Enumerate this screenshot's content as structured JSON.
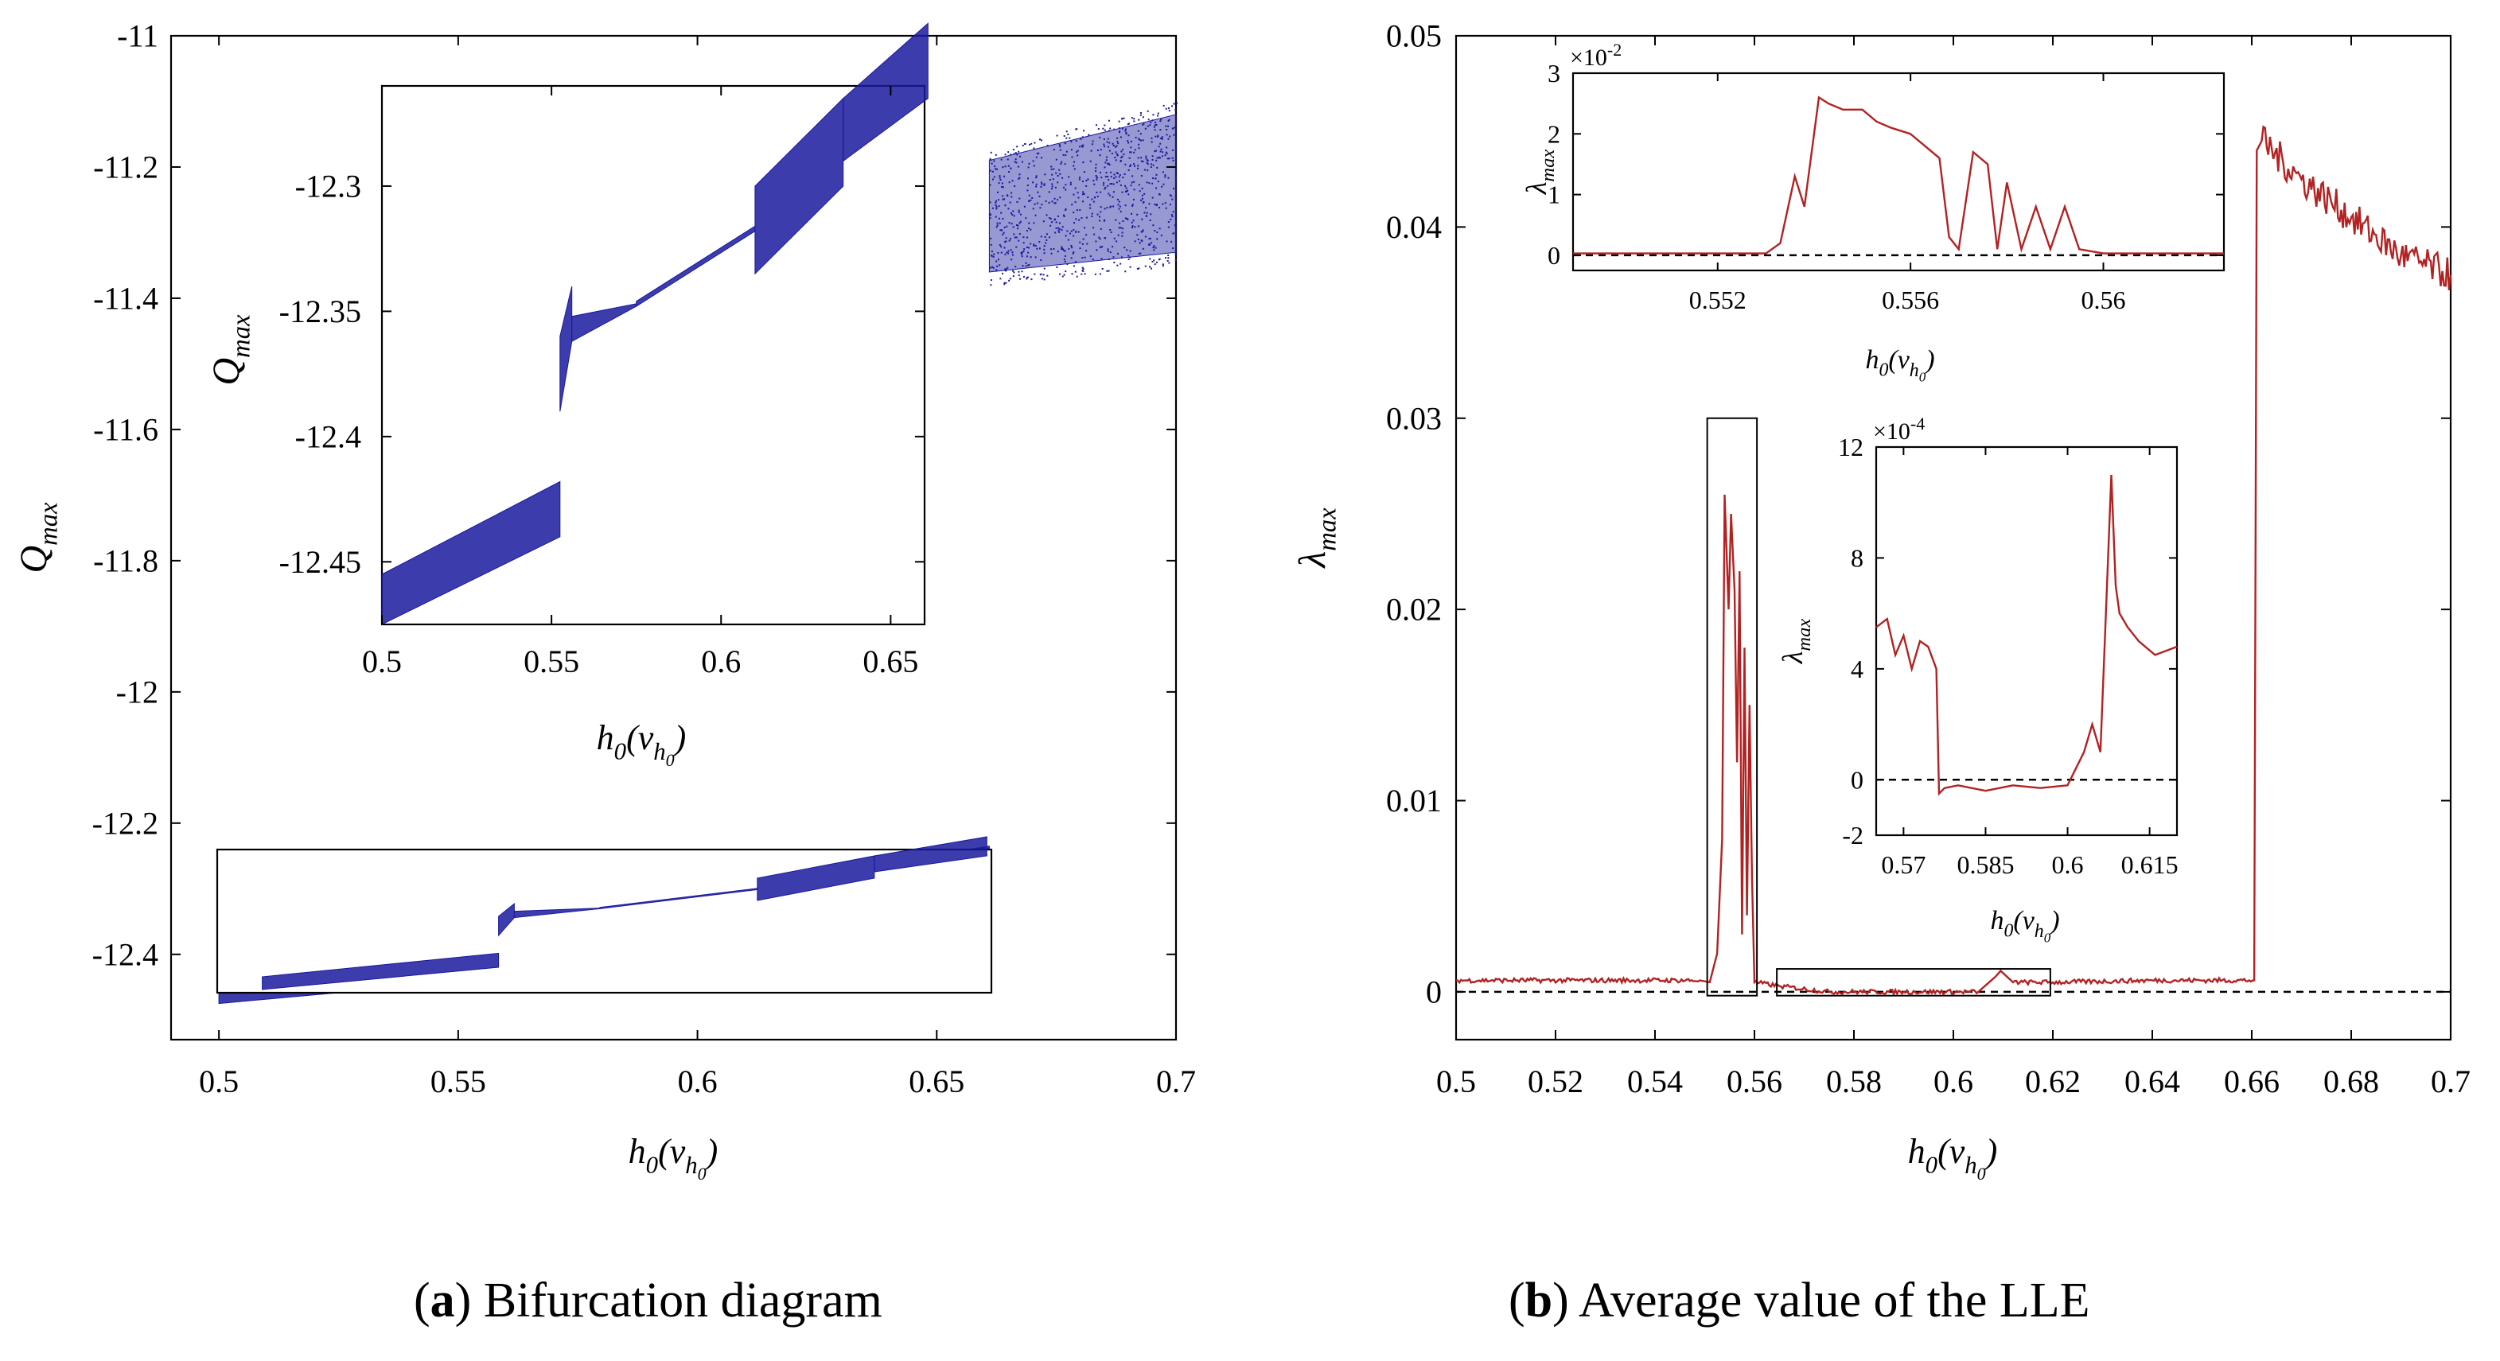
{
  "chart_data": [
    {
      "id": "a",
      "type": "scatter",
      "title": "Bifurcation diagram",
      "xlabel_base": "h",
      "xlabel_sub": "0",
      "xlabel_arg": "v",
      "xlabel_argsub": "h",
      "xlabel_argsub2": "0",
      "ylabel_base": "Q",
      "ylabel_sub": "max",
      "xlim": [
        0.49,
        0.7
      ],
      "ylim": [
        -12.53,
        -11.0
      ],
      "xticks": [
        0.5,
        0.55,
        0.6,
        0.65,
        0.7
      ],
      "xtick_labels": [
        "0.5",
        "0.55",
        "0.6",
        "0.65",
        "0.7"
      ],
      "yticks": [
        -11,
        -11.2,
        -11.4,
        -11.6,
        -11.8,
        -12,
        -12.2,
        -12.4
      ],
      "ytick_labels": [
        "-11",
        "-11.2",
        "-11.4",
        "-11.6",
        "-11.8",
        "-12",
        "-12.2",
        "-12.4"
      ],
      "color": "#1a1a9e",
      "segments": [
        {
          "x0": 0.5,
          "x1": 0.5525,
          "ylo0": -12.475,
          "ylo1": -12.44,
          "yhi0": -12.455,
          "yhi1": -12.418
        },
        {
          "x0": 0.5525,
          "x1": 0.556,
          "ylo0": -12.39,
          "ylo1": -12.362,
          "yhi0": -12.36,
          "yhi1": -12.34
        },
        {
          "x0": 0.556,
          "x1": 0.575,
          "ylo0": -12.362,
          "ylo1": -12.348,
          "yhi0": -12.352,
          "yhi1": -12.347
        },
        {
          "x0": 0.575,
          "x1": 0.61,
          "ylo0": -12.348,
          "ylo1": -12.318,
          "yhi0": -12.346,
          "yhi1": -12.316
        },
        {
          "x0": 0.61,
          "x1": 0.636,
          "ylo0": -12.335,
          "ylo1": -12.3,
          "yhi0": -12.3,
          "yhi1": -12.265
        },
        {
          "x0": 0.636,
          "x1": 0.661,
          "ylo0": -12.29,
          "ylo1": -12.265,
          "yhi0": -12.265,
          "yhi1": -12.235
        },
        {
          "x0": 0.661,
          "x1": 0.7,
          "ylo0": -11.36,
          "ylo1": -11.33,
          "yhi0": -11.19,
          "yhi1": -11.12
        }
      ],
      "inset": {
        "xlim": [
          0.5,
          0.66
        ],
        "ylim": [
          -12.475,
          -12.26
        ],
        "xticks": [
          0.5,
          0.55,
          0.6,
          0.65
        ],
        "xtick_labels": [
          "0.5",
          "0.55",
          "0.6",
          "0.65"
        ],
        "yticks": [
          -12.3,
          -12.35,
          -12.4,
          -12.45
        ],
        "ytick_labels": [
          "-12.3",
          "-12.35",
          "-12.4",
          "-12.45"
        ]
      }
    },
    {
      "id": "b",
      "type": "line",
      "title": "Average value of the LLE",
      "xlabel_base": "h",
      "xlabel_sub": "0",
      "xlabel_arg": "v",
      "xlabel_argsub": "h",
      "xlabel_argsub2": "0",
      "ylabel_base": "λ",
      "ylabel_sub": "max",
      "xlim": [
        0.5,
        0.7
      ],
      "ylim": [
        -0.0025,
        0.05
      ],
      "xticks": [
        0.5,
        0.52,
        0.54,
        0.56,
        0.58,
        0.6,
        0.62,
        0.64,
        0.66,
        0.68,
        0.7
      ],
      "xtick_labels": [
        "0.5",
        "0.52",
        "0.54",
        "0.56",
        "0.58",
        "0.6",
        "0.62",
        "0.64",
        "0.66",
        "0.68",
        "0.7"
      ],
      "yticks": [
        0,
        0.01,
        0.02,
        0.03,
        0.04,
        0.05
      ],
      "ytick_labels": [
        "0",
        "0.01",
        "0.02",
        "0.03",
        "0.04",
        "0.05"
      ],
      "color": "#b22222",
      "series": [
        {
          "name": "LLE",
          "x": [
            0.5,
            0.549,
            0.551,
            0.5525,
            0.5535,
            0.554,
            0.5548,
            0.5553,
            0.556,
            0.5565,
            0.557,
            0.5575,
            0.558,
            0.5585,
            0.559,
            0.5595,
            0.56,
            0.565,
            0.575,
            0.59,
            0.605,
            0.6085,
            0.6095,
            0.612,
            0.62,
            0.64,
            0.6605,
            0.661,
            0.662,
            0.67,
            0.68,
            0.69,
            0.7
          ],
          "y": [
            0.0006,
            0.0006,
            0.0005,
            0.002,
            0.008,
            0.026,
            0.02,
            0.025,
            0.021,
            0.012,
            0.022,
            0.003,
            0.018,
            0.004,
            0.015,
            0.006,
            0.0005,
            0.0003,
            0.0,
            0.0,
            0.0,
            0.0008,
            0.0011,
            0.0005,
            0.0005,
            0.0006,
            0.0006,
            0.044,
            0.0445,
            0.0425,
            0.0405,
            0.0385,
            0.0375
          ]
        },
        {
          "name": "zero",
          "x": [
            0.5,
            0.7
          ],
          "y": [
            0,
            0
          ]
        }
      ],
      "boxes": [
        {
          "x0": 0.5505,
          "x1": 0.5605,
          "y0": -0.0002,
          "y1": 0.03
        },
        {
          "x0": 0.5645,
          "x1": 0.6195,
          "y0": -0.0002,
          "y1": 0.0012
        }
      ],
      "inset1": {
        "xlim": [
          0.549,
          0.5625
        ],
        "ylim": [
          -0.0025,
          0.03
        ],
        "xticks": [
          0.552,
          0.556,
          0.56
        ],
        "xtick_labels": [
          "0.552",
          "0.556",
          "0.56"
        ],
        "yticks": [
          0,
          1,
          2,
          3
        ],
        "ytick_labels": [
          "0",
          "1",
          "2",
          "3"
        ],
        "scale_label": "×10",
        "scale_exp": "-2",
        "x": [
          0.549,
          0.553,
          0.5533,
          0.5536,
          0.5538,
          0.5541,
          0.5543,
          0.5546,
          0.555,
          0.5553,
          0.5556,
          0.556,
          0.5563,
          0.5566,
          0.5568,
          0.557,
          0.5573,
          0.5576,
          0.5578,
          0.558,
          0.5583,
          0.5586,
          0.5589,
          0.5592,
          0.5595,
          0.56,
          0.5625
        ],
        "y": [
          0.0003,
          0.0003,
          0.002,
          0.013,
          0.008,
          0.026,
          0.025,
          0.024,
          0.024,
          0.022,
          0.021,
          0.02,
          0.018,
          0.016,
          0.003,
          0.001,
          0.017,
          0.015,
          0.001,
          0.012,
          0.001,
          0.008,
          0.001,
          0.008,
          0.001,
          0.0003,
          0.0003
        ]
      },
      "inset2": {
        "xlim": [
          0.565,
          0.62
        ],
        "ylim": [
          -0.0002,
          0.0012
        ],
        "xticks": [
          0.57,
          0.585,
          0.6,
          0.615
        ],
        "xtick_labels": [
          "0.57",
          "0.585",
          "0.6",
          "0.615"
        ],
        "yticks": [
          -2,
          0,
          4,
          8,
          12
        ],
        "ytick_labels": [
          "-2",
          "0",
          "4",
          "8",
          "12"
        ],
        "scale_label": "×10",
        "scale_exp": "-4",
        "x": [
          0.565,
          0.567,
          0.5685,
          0.57,
          0.5715,
          0.573,
          0.5745,
          0.576,
          0.5765,
          0.5775,
          0.58,
          0.585,
          0.59,
          0.595,
          0.6,
          0.603,
          0.6045,
          0.606,
          0.607,
          0.608,
          0.6088,
          0.6095,
          0.611,
          0.613,
          0.616,
          0.62
        ],
        "y": [
          0.00055,
          0.00058,
          0.00045,
          0.00052,
          0.0004,
          0.0005,
          0.00048,
          0.0004,
          -5e-05,
          -3e-05,
          -2e-05,
          -4e-05,
          -2e-05,
          -3e-05,
          -2e-05,
          0.0001,
          0.0002,
          0.0001,
          0.0006,
          0.0011,
          0.0007,
          0.0006,
          0.00055,
          0.0005,
          0.00045,
          0.00048
        ]
      }
    }
  ],
  "captions": {
    "a_label": "a",
    "a_text": " Bifurcation diagram",
    "b_label": "b",
    "b_text": " Average value of the LLE"
  }
}
